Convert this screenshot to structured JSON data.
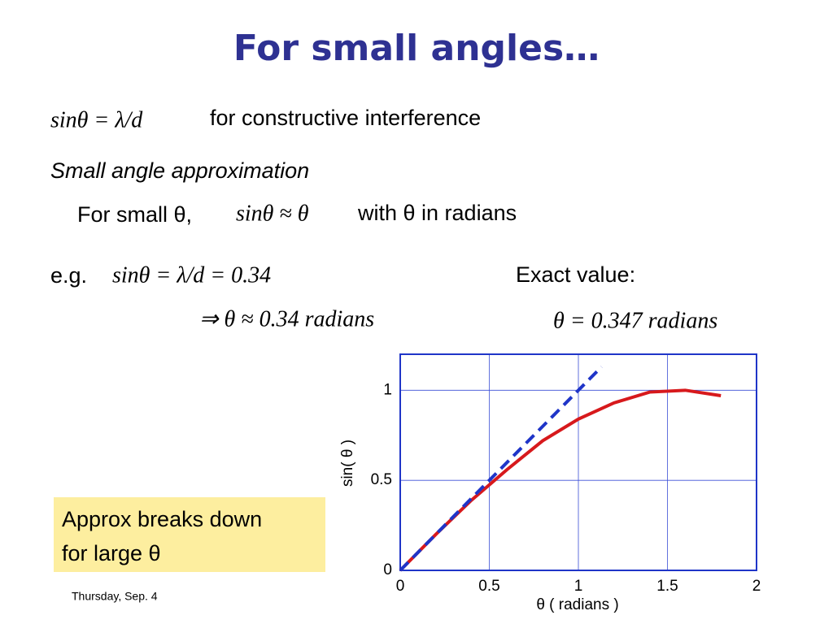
{
  "title": "For small angles…",
  "eq1": {
    "formula": "sinθ = λ/d",
    "text": "for constructive interference"
  },
  "subtitle": "Small angle approximation",
  "approx": {
    "prefix": "For small θ,",
    "formula": "sinθ ≈ θ",
    "suffix": "with θ in radians"
  },
  "example": {
    "prefix": "e.g.",
    "formula": "sinθ = λ/d = 0.34",
    "result": "⇒ θ ≈ 0.34 radians"
  },
  "exact": {
    "label": "Exact value:",
    "formula": "θ = 0.347 radians"
  },
  "callout": {
    "lines": [
      "Approx breaks down",
      "for large θ"
    ]
  },
  "footer": "Thursday, Sep. 4",
  "chart_data": {
    "type": "line",
    "xlabel": "θ  ( radians )",
    "ylabel": "sin( θ )",
    "xlim": [
      0,
      2
    ],
    "ylim": [
      0,
      1.2
    ],
    "xticks": [
      0,
      0.5,
      1,
      1.5,
      2
    ],
    "yticks": [
      0,
      0.5,
      1
    ],
    "grid": true,
    "series": [
      {
        "color": "#d7191c",
        "dash": false,
        "x": [
          0,
          0.2,
          0.4,
          0.6,
          0.8,
          1.0,
          1.2,
          1.4,
          1.6,
          1.8
        ],
        "values": [
          0,
          0.2,
          0.39,
          0.56,
          0.72,
          0.84,
          0.93,
          0.99,
          1.0,
          0.97
        ]
      },
      {
        "color": "#1f35c8",
        "dash": true,
        "x": [
          0,
          1.13
        ],
        "values": [
          0,
          1.13
        ]
      }
    ]
  }
}
